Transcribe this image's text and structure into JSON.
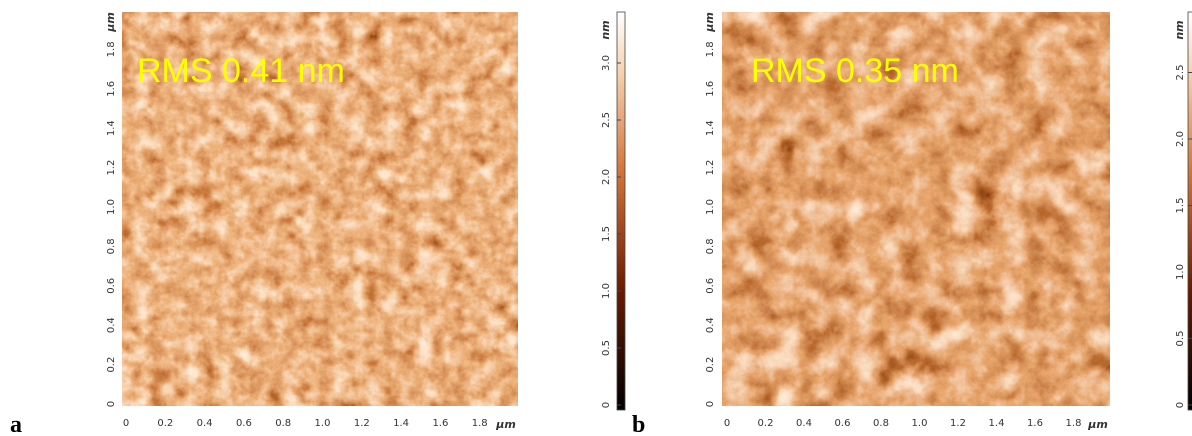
{
  "panels": [
    {
      "label": "a",
      "annotation": "RMS 0.41 nm",
      "x_ticks": [
        "0",
        "0.2",
        "0.4",
        "0.6",
        "0.8",
        "1.0",
        "1.2",
        "1.4",
        "1.6",
        "1.8"
      ],
      "x_unit": "μm",
      "y_ticks": [
        "0",
        "0.2",
        "0.4",
        "0.6",
        "0.8",
        "1.0",
        "1.2",
        "1.4",
        "1.6",
        "1.8"
      ],
      "y_unit": "μm",
      "colorbar": {
        "unit": "nm",
        "ticks": [
          "0",
          "0.5",
          "1.0",
          "1.5",
          "2.0",
          "2.5",
          "3.0"
        ]
      }
    },
    {
      "label": "b",
      "annotation": "RMS 0.35 nm",
      "x_ticks": [
        "0",
        "0.2",
        "0.4",
        "0.6",
        "0.8",
        "1.0",
        "1.2",
        "1.4",
        "1.6",
        "1.8"
      ],
      "x_unit": "μm",
      "y_ticks": [
        "0",
        "0.2",
        "0.4",
        "0.6",
        "0.8",
        "1.0",
        "1.2",
        "1.4",
        "1.6",
        "1.8"
      ],
      "y_unit": "μm",
      "colorbar": {
        "unit": "nm",
        "ticks": [
          "0",
          "0.5",
          "1.0",
          "1.5",
          "2.0",
          "2.5"
        ]
      }
    }
  ]
}
